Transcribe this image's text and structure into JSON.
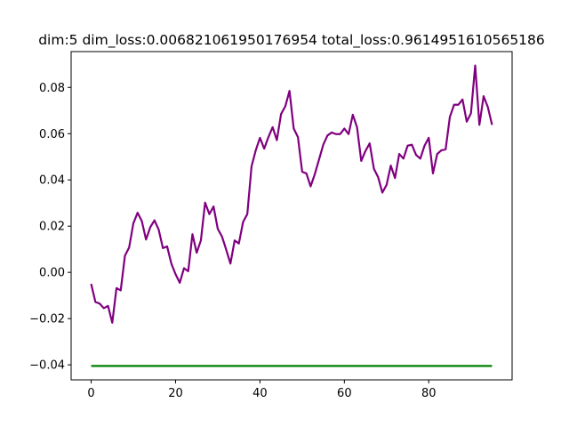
{
  "chart_data": {
    "type": "line",
    "title": "dim:5 dim_loss:0.006821061950176954 total_loss:0.9614951610565186",
    "xlabel": "",
    "ylabel": "",
    "xlim": [
      -4.75,
      99.75
    ],
    "ylim": [
      -0.0465,
      0.0955
    ],
    "xticks": [
      0,
      20,
      40,
      60,
      80
    ],
    "yticks": [
      -0.04,
      -0.02,
      0.0,
      0.02,
      0.04,
      0.06,
      0.08
    ],
    "ytick_labels": [
      "−0.04",
      "−0.02",
      "0.00",
      "0.02",
      "0.04",
      "0.06",
      "0.08"
    ],
    "grid": false,
    "series": [
      {
        "color": "#800080",
        "x": [
          0,
          1,
          2,
          3,
          4,
          5,
          6,
          7,
          8,
          9,
          10,
          11,
          12,
          13,
          14,
          15,
          16,
          17,
          18,
          19,
          20,
          21,
          22,
          23,
          24,
          25,
          26,
          27,
          28,
          29,
          30,
          31,
          32,
          33,
          34,
          35,
          36,
          37,
          38,
          39,
          40,
          41,
          42,
          43,
          44,
          45,
          46,
          47,
          48,
          49,
          50,
          51,
          52,
          53,
          54,
          55,
          56,
          57,
          58,
          59,
          60,
          61,
          62,
          63,
          64,
          65,
          66,
          67,
          68,
          69,
          70,
          71,
          72,
          73,
          74,
          75,
          76,
          77,
          78,
          79,
          80,
          81,
          82,
          83,
          84,
          85,
          86,
          87,
          88,
          89,
          90,
          91,
          92,
          93,
          94,
          95
        ],
        "y": [
          -0.005,
          -0.0128,
          -0.0135,
          -0.0155,
          -0.0145,
          -0.0218,
          -0.0068,
          -0.0078,
          0.0072,
          0.0108,
          0.0212,
          0.0258,
          0.0222,
          0.0142,
          0.0195,
          0.0225,
          0.0185,
          0.0105,
          0.0112,
          0.0038,
          -0.0008,
          -0.0045,
          0.0018,
          0.0005,
          0.0165,
          0.0085,
          0.0138,
          0.0302,
          0.0252,
          0.0285,
          0.0188,
          0.0155,
          0.0098,
          0.0038,
          0.0138,
          0.0125,
          0.0218,
          0.0252,
          0.0458,
          0.0528,
          0.0582,
          0.0535,
          0.0585,
          0.0628,
          0.0572,
          0.0685,
          0.0718,
          0.0785,
          0.0622,
          0.0585,
          0.0435,
          0.0428,
          0.0372,
          0.0425,
          0.0488,
          0.0552,
          0.0592,
          0.0605,
          0.0598,
          0.0598,
          0.0622,
          0.0598,
          0.0682,
          0.0628,
          0.0482,
          0.0525,
          0.0558,
          0.0448,
          0.0412,
          0.0345,
          0.0378,
          0.0462,
          0.0408,
          0.0512,
          0.0492,
          0.0548,
          0.0552,
          0.0508,
          0.0492,
          0.0548,
          0.0582,
          0.0428,
          0.0512,
          0.0528,
          0.0532,
          0.0672,
          0.0725,
          0.0725,
          0.0748,
          0.0652,
          0.0688,
          0.0895,
          0.0638,
          0.0762,
          0.0715,
          0.0638
        ]
      },
      {
        "color": "#008000",
        "x": [
          0,
          95
        ],
        "y": [
          -0.0405,
          -0.0405
        ]
      }
    ]
  }
}
